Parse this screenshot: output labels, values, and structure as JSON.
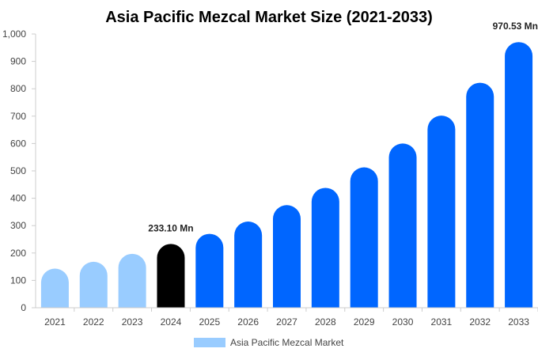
{
  "chart_data": {
    "type": "bar",
    "title": "Asia Pacific Mezcal Market Size (2021-2033)",
    "xlabel": "",
    "ylabel": "",
    "categories": [
      "2021",
      "2022",
      "2023",
      "2024",
      "2025",
      "2026",
      "2027",
      "2028",
      "2029",
      "2030",
      "2031",
      "2032",
      "2033"
    ],
    "series": [
      {
        "name": "Asia Pacific Mezcal Market",
        "values": [
          143,
          168,
          197,
          233.1,
          270,
          315,
          375,
          438,
          513,
          600,
          702,
          822,
          970.53
        ]
      }
    ],
    "data_labels": {
      "3": "233.10 Mn",
      "12": "970.53 Mn"
    },
    "ylim": [
      0,
      1000
    ],
    "yticks": [
      0,
      100,
      200,
      300,
      400,
      500,
      600,
      700,
      800,
      900,
      1000
    ],
    "ytick_labels": [
      "0",
      "100",
      "200",
      "300",
      "400",
      "500",
      "600",
      "700",
      "800",
      "900",
      "1,000"
    ],
    "grid": false,
    "legend_position": "bottom",
    "colors": {
      "historical": "#99ccff",
      "base_year": "#000000",
      "forecast": "#0066ff",
      "legend_swatch": "#99ccff"
    },
    "bar_roles": [
      "historical",
      "historical",
      "historical",
      "base_year",
      "forecast",
      "forecast",
      "forecast",
      "forecast",
      "forecast",
      "forecast",
      "forecast",
      "forecast",
      "forecast"
    ]
  }
}
